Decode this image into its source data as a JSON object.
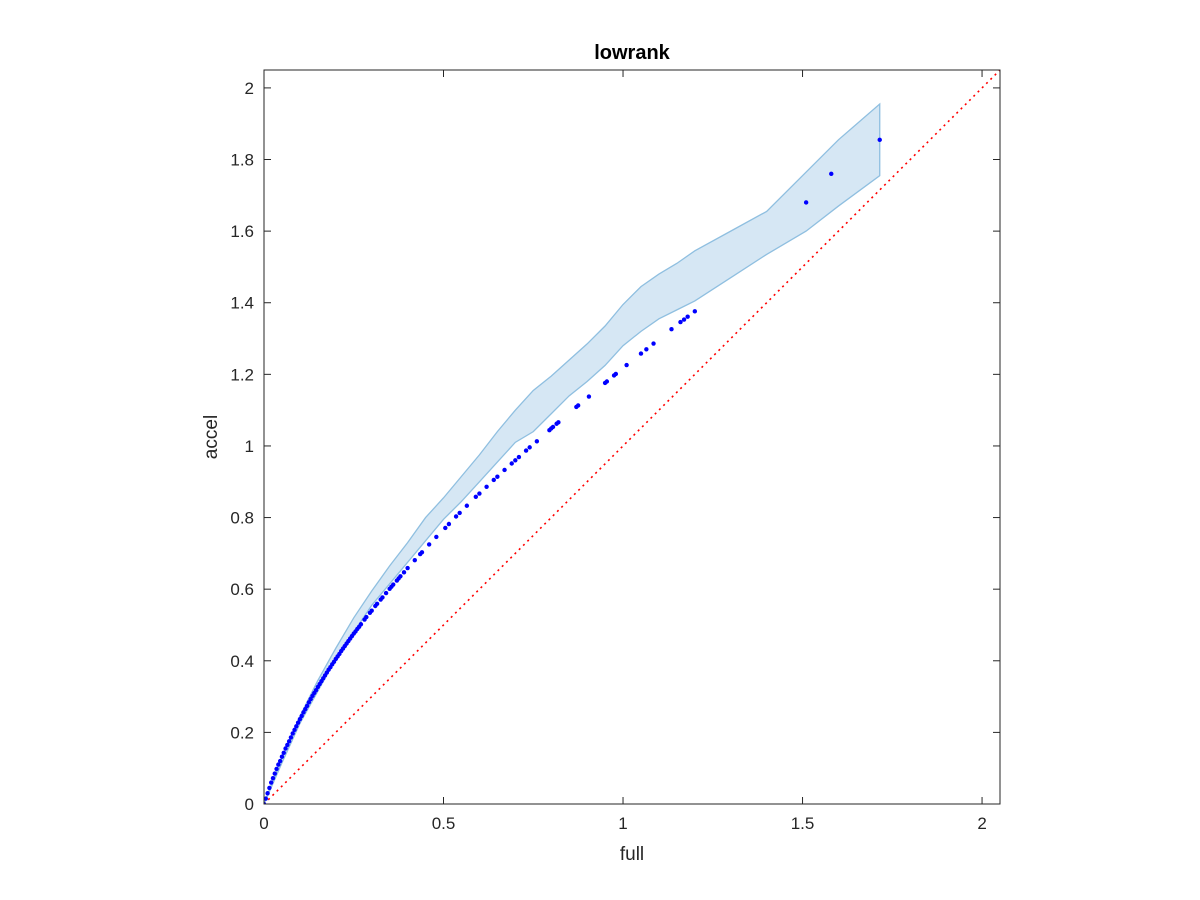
{
  "chart_data": {
    "type": "scatter",
    "title": "lowrank",
    "xlabel": "full",
    "ylabel": "accel",
    "xlim": [
      0,
      2.05
    ],
    "ylim": [
      0,
      2.05
    ],
    "xticks": [
      0,
      0.5,
      1,
      1.5,
      2
    ],
    "xtick_labels": [
      "0",
      "0.5",
      "1",
      "1.5",
      "2"
    ],
    "yticks": [
      0,
      0.2,
      0.4,
      0.6,
      0.8,
      1,
      1.2,
      1.4,
      1.6,
      1.8,
      2
    ],
    "ytick_labels": [
      "0",
      "0.2",
      "0.4",
      "0.6",
      "0.8",
      "1",
      "1.2",
      "1.4",
      "1.6",
      "1.8",
      "2"
    ],
    "grid": false,
    "colors": {
      "points": "#0000ff",
      "band_fill": "#d6e7f4",
      "band_edge": "#8fbfe0",
      "reference_line": "#ff0000",
      "axes": "#262626"
    },
    "reference_line": {
      "style": "dotted",
      "x": [
        0,
        2.05
      ],
      "y": [
        0,
        2.05
      ]
    },
    "band": {
      "x": [
        0,
        0.05,
        0.1,
        0.15,
        0.2,
        0.25,
        0.3,
        0.35,
        0.4,
        0.45,
        0.5,
        0.55,
        0.6,
        0.65,
        0.7,
        0.75,
        0.8,
        0.85,
        0.9,
        0.95,
        1.0,
        1.05,
        1.1,
        1.15,
        1.2,
        1.3,
        1.4,
        1.51,
        1.6,
        1.715
      ],
      "upper": [
        0,
        0.13,
        0.245,
        0.345,
        0.435,
        0.52,
        0.595,
        0.665,
        0.73,
        0.8,
        0.855,
        0.915,
        0.975,
        1.04,
        1.1,
        1.155,
        1.195,
        1.24,
        1.285,
        1.335,
        1.395,
        1.445,
        1.48,
        1.51,
        1.545,
        1.6,
        1.655,
        1.765,
        1.855,
        1.955
      ],
      "lower": [
        0,
        0.115,
        0.225,
        0.315,
        0.405,
        0.48,
        0.555,
        0.615,
        0.675,
        0.735,
        0.795,
        0.845,
        0.9,
        0.955,
        1.01,
        1.04,
        1.09,
        1.14,
        1.18,
        1.225,
        1.28,
        1.32,
        1.355,
        1.38,
        1.405,
        1.47,
        1.535,
        1.6,
        1.67,
        1.755
      ]
    },
    "series": [
      {
        "x": [
          0.0,
          0.005,
          0.01,
          0.015,
          0.02,
          0.025,
          0.03,
          0.035,
          0.04,
          0.045,
          0.05,
          0.055,
          0.06,
          0.065,
          0.07,
          0.075,
          0.08,
          0.085,
          0.09,
          0.095,
          0.1,
          0.105,
          0.11,
          0.115,
          0.12,
          0.125,
          0.13,
          0.135,
          0.14,
          0.145,
          0.15,
          0.155,
          0.16,
          0.165,
          0.17,
          0.175,
          0.18,
          0.185,
          0.19,
          0.195,
          0.2,
          0.205,
          0.21,
          0.215,
          0.22,
          0.225,
          0.23,
          0.235,
          0.24,
          0.245,
          0.25,
          0.255,
          0.26,
          0.265,
          0.27,
          0.28,
          0.285,
          0.295,
          0.3,
          0.31,
          0.315,
          0.325,
          0.33,
          0.34,
          0.35,
          0.355,
          0.36,
          0.37,
          0.375,
          0.38,
          0.39,
          0.4,
          0.42,
          0.435,
          0.44,
          0.46,
          0.48,
          0.505,
          0.515,
          0.535,
          0.545,
          0.565,
          0.59,
          0.6,
          0.62,
          0.64,
          0.65,
          0.67,
          0.69,
          0.7,
          0.71,
          0.73,
          0.74,
          0.76,
          0.795,
          0.8,
          0.805,
          0.815,
          0.82,
          0.87,
          0.875,
          0.905,
          0.95,
          0.955,
          0.975,
          0.98,
          1.01,
          1.05,
          1.065,
          1.085,
          1.135,
          1.16,
          1.17,
          1.18,
          1.2,
          1.51,
          1.58,
          1.715
        ],
        "y": [
          0.0,
          0.015,
          0.03,
          0.045,
          0.06,
          0.072,
          0.085,
          0.098,
          0.11,
          0.12,
          0.132,
          0.143,
          0.155,
          0.165,
          0.175,
          0.186,
          0.197,
          0.207,
          0.217,
          0.227,
          0.237,
          0.246,
          0.256,
          0.265,
          0.274,
          0.284,
          0.293,
          0.302,
          0.31,
          0.318,
          0.327,
          0.335,
          0.343,
          0.351,
          0.359,
          0.367,
          0.375,
          0.382,
          0.39,
          0.397,
          0.405,
          0.412,
          0.419,
          0.427,
          0.434,
          0.441,
          0.448,
          0.455,
          0.462,
          0.469,
          0.476,
          0.482,
          0.489,
          0.495,
          0.502,
          0.515,
          0.522,
          0.534,
          0.54,
          0.553,
          0.559,
          0.571,
          0.577,
          0.589,
          0.601,
          0.607,
          0.613,
          0.624,
          0.63,
          0.636,
          0.647,
          0.659,
          0.681,
          0.698,
          0.703,
          0.725,
          0.746,
          0.771,
          0.782,
          0.803,
          0.813,
          0.833,
          0.858,
          0.867,
          0.886,
          0.905,
          0.914,
          0.933,
          0.951,
          0.96,
          0.969,
          0.987,
          0.996,
          1.013,
          1.044,
          1.049,
          1.053,
          1.062,
          1.066,
          1.109,
          1.113,
          1.138,
          1.176,
          1.18,
          1.197,
          1.201,
          1.226,
          1.258,
          1.27,
          1.286,
          1.326,
          1.346,
          1.353,
          1.361,
          1.376,
          1.68,
          1.76,
          1.855
        ]
      }
    ]
  }
}
